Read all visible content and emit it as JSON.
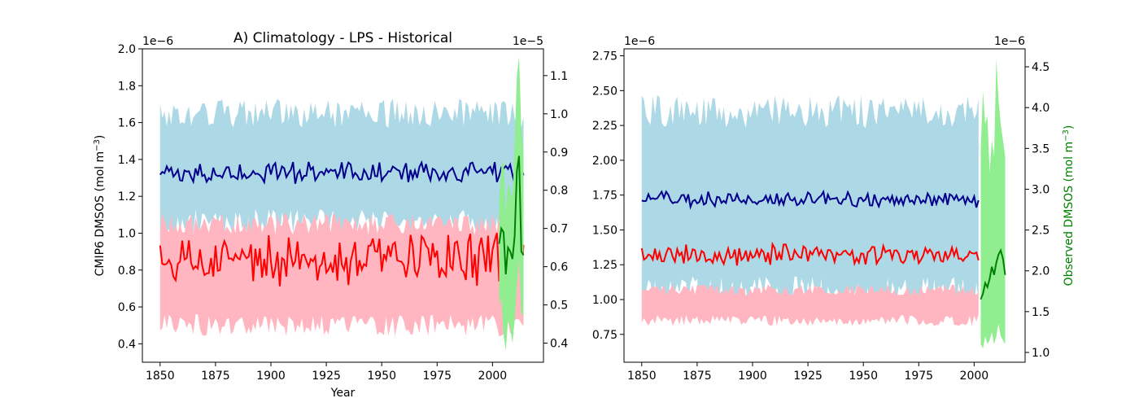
{
  "chart_data": [
    {
      "type": "line",
      "title": "A) Climatology - LPS - Historical",
      "xlabel": "Year",
      "ylabel_left": "CMIP6 DMSOS (mol m",
      "ylabel_left_sup": "−3",
      "ylabel_left_tail": ")",
      "ylabel_right": "",
      "left_offset_text": "1e−6",
      "right_offset_text": "1e−5",
      "xlim": [
        1842,
        2023
      ],
      "ylim_left": [
        0.3,
        2.0
      ],
      "ylim_right": [
        0.35,
        1.17
      ],
      "x_ticks": [
        1850,
        1875,
        1900,
        1925,
        1950,
        1975,
        2000
      ],
      "y_ticks_left": [
        "0.4",
        "0.6",
        "0.8",
        "1.0",
        "1.2",
        "1.4",
        "1.6",
        "1.8",
        "2.0"
      ],
      "y_ticks_right": [
        "0.4",
        "0.5",
        "0.6",
        "0.7",
        "0.8",
        "0.9",
        "1.0",
        "1.1"
      ],
      "year_start": 1850,
      "year_end": 2014,
      "obs_year_start": 2003,
      "obs_year_end": 2014,
      "series": [
        {
          "color": "#00008b",
          "mean": 1.33,
          "noise": 0.045,
          "band_low": 1.05,
          "band_high": 1.65,
          "band_noise": 0.08,
          "band_color": "#add8e6",
          "axis": "left"
        },
        {
          "color": "#ff0000",
          "mean": 0.85,
          "noise": 0.11,
          "band_low": 0.5,
          "band_high": 1.05,
          "band_noise": 0.06,
          "band_color": "#ffb6c1",
          "axis": "left"
        }
      ],
      "observed": {
        "color": "#008000",
        "band_color": "#90ee90",
        "values": [
          0.66,
          0.7,
          0.69,
          0.58,
          0.65,
          0.64,
          0.62,
          0.68,
          0.85,
          0.89,
          0.64,
          0.63
        ],
        "low": [
          0.5,
          0.52,
          0.42,
          0.38,
          0.46,
          0.44,
          0.4,
          0.46,
          0.55,
          0.62,
          0.48,
          0.47
        ],
        "high": [
          0.78,
          0.86,
          0.88,
          0.74,
          0.82,
          0.8,
          0.78,
          0.92,
          1.1,
          1.15,
          0.96,
          0.9
        ],
        "axis": "right"
      }
    },
    {
      "type": "line",
      "title": "",
      "xlabel": "",
      "ylabel_left": "",
      "ylabel_right": "Observed DMSOS (mol m",
      "ylabel_right_sup": "−3",
      "ylabel_right_tail": ")",
      "left_offset_text": "1e−6",
      "right_offset_text": "1e−6",
      "xlim": [
        1842,
        2023
      ],
      "ylim_left": [
        0.55,
        2.8
      ],
      "ylim_right": [
        0.88,
        4.72
      ],
      "x_ticks": [
        1850,
        1875,
        1900,
        1925,
        1950,
        1975,
        2000
      ],
      "y_ticks_left": [
        "0.75",
        "1.00",
        "1.25",
        "1.50",
        "1.75",
        "2.00",
        "2.25",
        "2.50",
        "2.75"
      ],
      "y_ticks_right": [
        "1.0",
        "1.5",
        "2.0",
        "2.5",
        "3.0",
        "3.5",
        "4.0",
        "4.5"
      ],
      "year_start": 1850,
      "year_end": 2002,
      "obs_year_start": 2003,
      "obs_year_end": 2014,
      "series": [
        {
          "color": "#00008b",
          "mean": 1.72,
          "noise": 0.04,
          "band_low": 1.05,
          "band_high": 2.35,
          "band_noise": 0.12,
          "band_color": "#add8e6",
          "axis": "left"
        },
        {
          "color": "#ff0000",
          "mean": 1.32,
          "noise": 0.06,
          "band_low": 0.85,
          "band_high": 1.07,
          "band_noise": 0.04,
          "band_color": "#ffb6c1",
          "axis": "left"
        }
      ],
      "observed": {
        "color": "#008000",
        "band_color": "#90ee90",
        "values": [
          1.65,
          1.72,
          1.85,
          1.8,
          1.9,
          2.05,
          1.95,
          2.1,
          2.2,
          2.25,
          2.15,
          1.95
        ],
        "low": [
          1.1,
          1.05,
          1.2,
          1.1,
          1.15,
          1.25,
          1.1,
          1.2,
          1.35,
          1.2,
          1.15,
          1.1
        ],
        "high": [
          3.5,
          4.2,
          3.8,
          3.9,
          3.2,
          3.6,
          3.4,
          4.6,
          4.1,
          3.8,
          3.6,
          3.4
        ],
        "axis": "right"
      }
    }
  ]
}
